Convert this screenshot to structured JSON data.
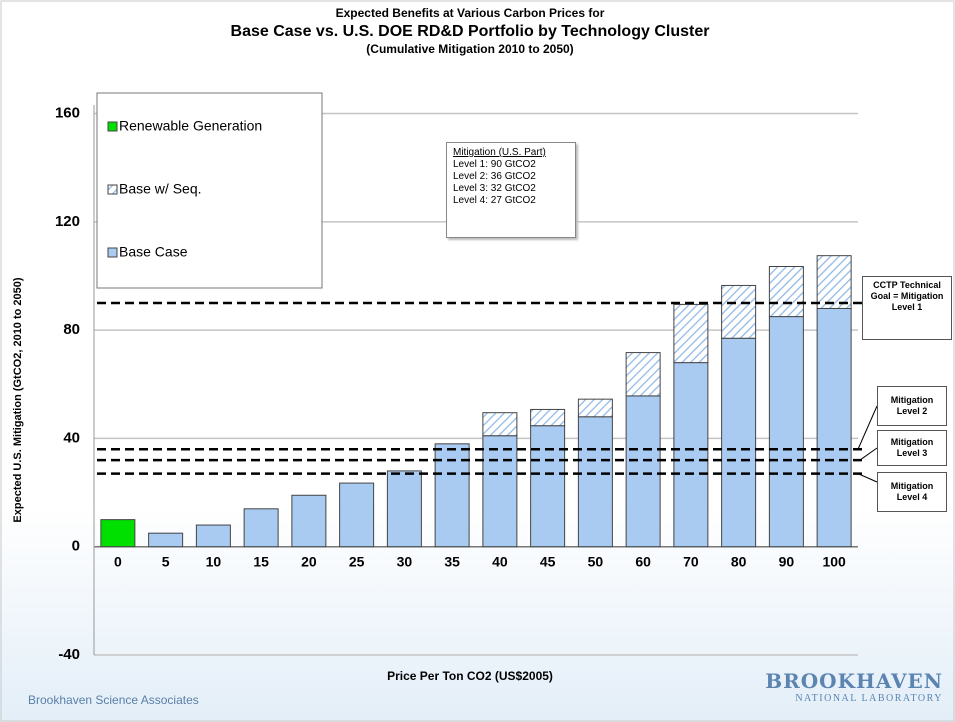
{
  "chart_data": {
    "type": "bar",
    "stacked": true,
    "title_lines": [
      "Expected Benefits at Various Carbon Prices for",
      "Base Case vs. U.S. DOE RD&D Portfolio by Technology Cluster",
      "(Cumulative Mitigation 2010 to 2050)"
    ],
    "x_label": "Price Per Ton CO2 (US$2005)",
    "y_label": "Expected U.S. Mitigation (GtCO2, 2010 to 2050)",
    "categories": [
      "0",
      "5",
      "10",
      "15",
      "20",
      "25",
      "30",
      "35",
      "40",
      "45",
      "50",
      "60",
      "70",
      "80",
      "90",
      "100"
    ],
    "series": [
      {
        "name": "Renewable Generation",
        "color": "#00e000",
        "values": [
          10,
          null,
          null,
          null,
          null,
          null,
          null,
          null,
          null,
          null,
          null,
          null,
          null,
          null,
          null,
          null
        ]
      },
      {
        "name": "Base w/ Seq.",
        "color": "#a9cbf2",
        "hatch": true,
        "values": [
          null,
          null,
          null,
          null,
          null,
          null,
          null,
          null,
          8.5,
          6,
          6.5,
          16,
          21.5,
          19.5,
          18.5,
          19.5
        ]
      },
      {
        "name": "Base Case",
        "color": "#a9cbf2",
        "values": [
          null,
          5,
          8,
          14,
          19,
          23.5,
          28,
          38,
          41,
          44.7,
          48,
          55.7,
          68,
          77,
          85,
          88
        ]
      }
    ],
    "ylim": [
      -40,
      165
    ],
    "yticks": [
      -40,
      0,
      40,
      80,
      120,
      160
    ],
    "grid": true,
    "reference_lines": [
      {
        "value": 90,
        "label": "CCTP Technical Goal = Mitigation Level 1"
      },
      {
        "value": 36,
        "label": "Mitigation Level 2"
      },
      {
        "value": 32,
        "label": "Mitigation Level 3"
      },
      {
        "value": 27,
        "label": "Mitigation Level 4"
      }
    ],
    "annotation_lines": [
      "Mitigation (U.S. Part)",
      "Level 1:  90 GtCO2",
      "Level 2:  36 GtCO2",
      "Level 3:  32 GtCO2",
      "Level 4:  27 GtCO2"
    ]
  },
  "footer": "Brookhaven Science Associates",
  "logo": {
    "name": "BROOKHAVEN",
    "subtitle": "NATIONAL LABORATORY"
  }
}
